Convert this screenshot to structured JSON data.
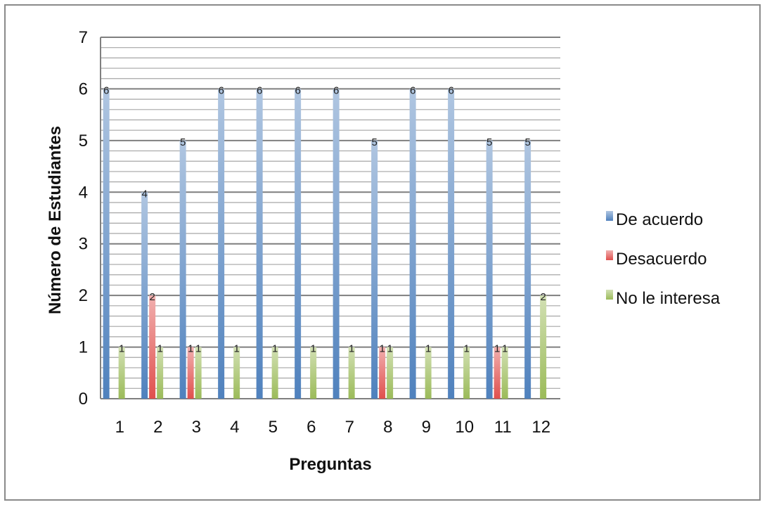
{
  "chart_data": {
    "type": "bar",
    "title": "",
    "xlabel": "Preguntas",
    "ylabel": "Número de Estudiantes",
    "categories": [
      "1",
      "2",
      "3",
      "4",
      "5",
      "6",
      "7",
      "8",
      "9",
      "10",
      "11",
      "12"
    ],
    "series": [
      {
        "name": "De acuerdo",
        "color": "#4f81bd",
        "values": [
          6,
          4,
          5,
          6,
          6,
          6,
          6,
          5,
          6,
          6,
          5,
          5
        ]
      },
      {
        "name": "Desacuerdo",
        "color": "#e0504d",
        "values": [
          0,
          2,
          1,
          0,
          0,
          0,
          0,
          1,
          0,
          0,
          1,
          0
        ]
      },
      {
        "name": "No le interesa",
        "color": "#9bbb59",
        "values": [
          1,
          1,
          1,
          1,
          1,
          1,
          1,
          1,
          1,
          1,
          1,
          2
        ]
      }
    ],
    "ylim": [
      0,
      7
    ],
    "yticks": [
      "0",
      "1",
      "2",
      "3",
      "4",
      "5",
      "6",
      "7"
    ],
    "grid": true,
    "data_labels": true,
    "legend_position": "right"
  }
}
